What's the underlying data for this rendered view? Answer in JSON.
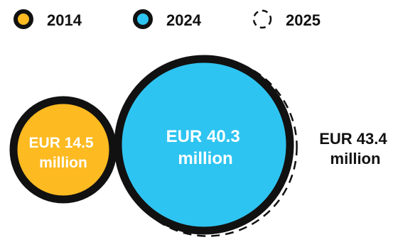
{
  "chart_data": {
    "type": "bubble",
    "title": "",
    "unit": "EUR million",
    "series": [
      {
        "name": "2014",
        "value": 14.5,
        "label_line1": "EUR 14.5",
        "label_line2": "million",
        "fill": "#FDBA21",
        "style": "solid"
      },
      {
        "name": "2024",
        "value": 40.3,
        "label_line1": "EUR 40.3",
        "label_line2": "million",
        "fill": "#2EC4F1",
        "style": "solid"
      },
      {
        "name": "2025",
        "value": 43.4,
        "label_line1": "EUR 43.4",
        "label_line2": "million",
        "fill": "none",
        "style": "dashed"
      }
    ],
    "legend_position": "top-left"
  },
  "colors": {
    "outline": "#111111",
    "yellow": "#FDBA21",
    "blue": "#2EC4F1",
    "label_light": "#ffffff",
    "label_dark": "#111111"
  }
}
